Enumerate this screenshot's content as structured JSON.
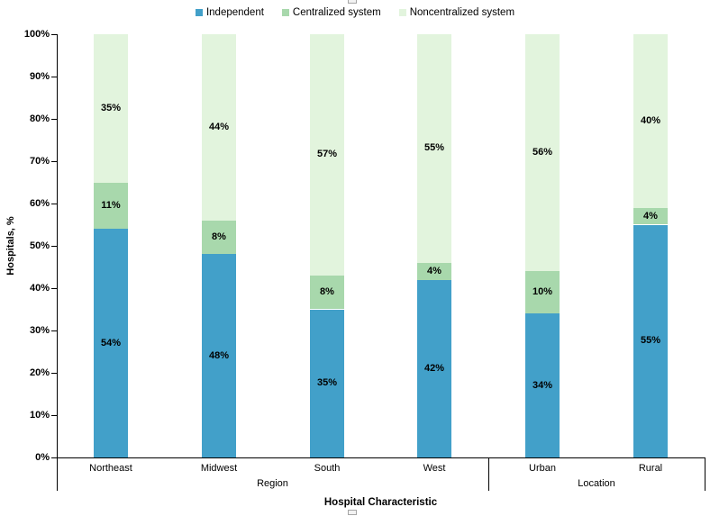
{
  "chart_data": {
    "type": "bar",
    "stacked": true,
    "percent_stacked": true,
    "title": "",
    "xlabel": "Hospital Characteristic",
    "ylabel": "Hospitals, %",
    "ylim": [
      0,
      100
    ],
    "ytick_step": 10,
    "ytick_labels": [
      "0%",
      "10%",
      "20%",
      "30%",
      "40%",
      "50%",
      "60%",
      "70%",
      "80%",
      "90%",
      "100%"
    ],
    "grid": false,
    "legend_position": "top",
    "categories": [
      "Northeast",
      "Midwest",
      "South",
      "West",
      "Urban",
      "Rural"
    ],
    "category_groups": [
      {
        "label": "Region",
        "categories": [
          "Northeast",
          "Midwest",
          "South",
          "West"
        ]
      },
      {
        "label": "Location",
        "categories": [
          "Urban",
          "Rural"
        ]
      }
    ],
    "series": [
      {
        "name": "Independent",
        "color": "#42A0C9",
        "values": [
          54,
          48,
          35,
          42,
          34,
          55
        ],
        "labels": [
          "54%",
          "48%",
          "35%",
          "42%",
          "34%",
          "55%"
        ]
      },
      {
        "name": "Centralized system",
        "color": "#A8D8AC",
        "values": [
          11,
          8,
          8,
          4,
          10,
          4
        ],
        "labels": [
          "11%",
          "8%",
          "8%",
          "4%",
          "10%",
          "4%"
        ]
      },
      {
        "name": "Noncentralized system",
        "color": "#E2F4DD",
        "values": [
          35,
          44,
          57,
          55,
          56,
          40
        ],
        "labels": [
          "35%",
          "44%",
          "57%",
          "55%",
          "56%",
          "40%"
        ]
      }
    ],
    "axis_color": "#000000",
    "background_color": "#FFFFFF"
  }
}
